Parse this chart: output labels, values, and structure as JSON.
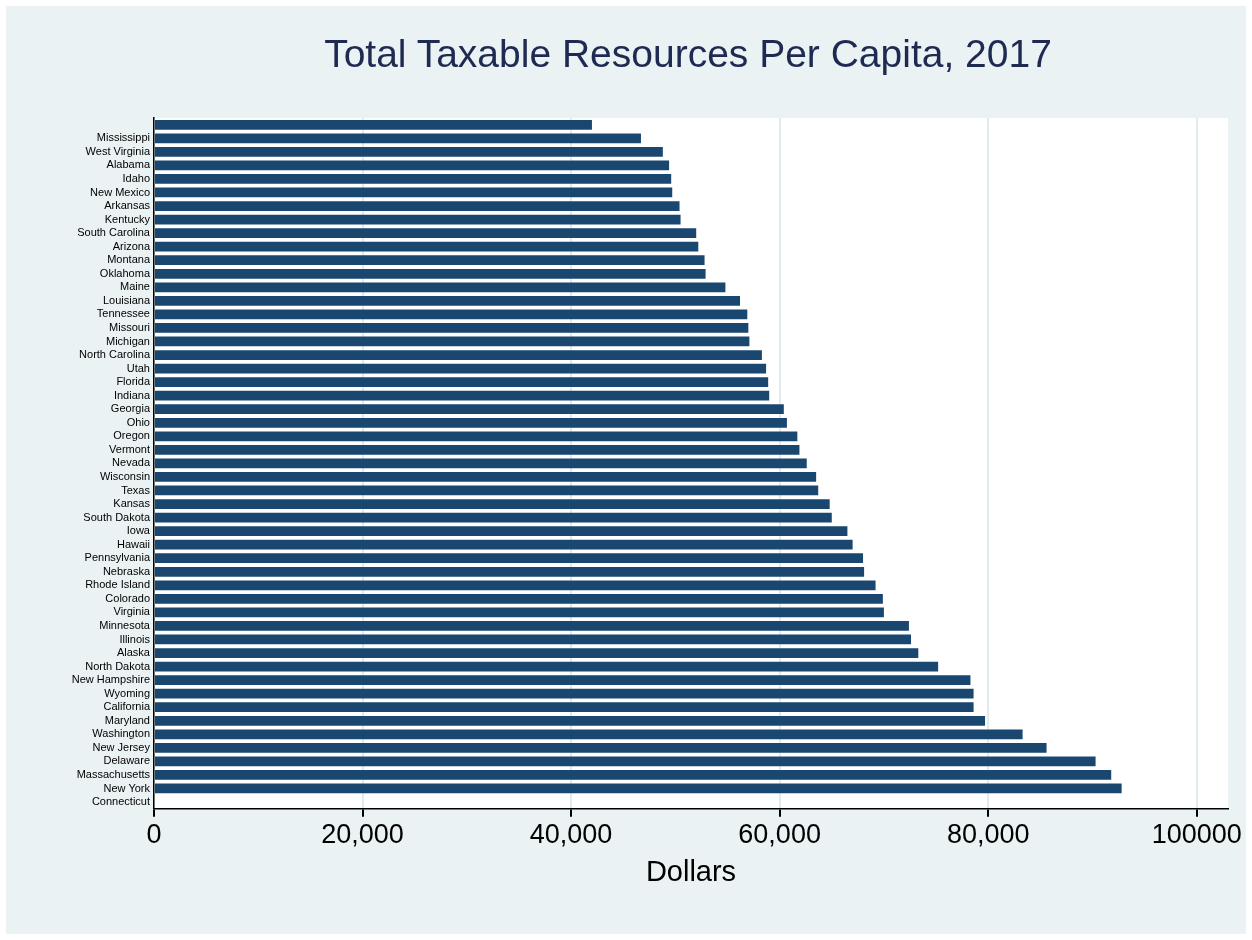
{
  "chart_data": {
    "type": "bar",
    "orientation": "horizontal",
    "title": "Total Taxable Resources Per Capita, 2017",
    "xlabel": "Dollars",
    "categories": [
      null,
      "Mississippi",
      "West Virginia",
      "Alabama",
      "Idaho",
      "New Mexico",
      "Arkansas",
      "Kentucky",
      "South Carolina",
      "Arizona",
      "Montana",
      "Oklahoma",
      "Maine",
      "Louisiana",
      "Tennessee",
      "Missouri",
      "Michigan",
      "North Carolina",
      "Utah",
      "Florida",
      "Indiana",
      "Georgia",
      "Ohio",
      "Oregon",
      "Vermont",
      "Nevada",
      "Wisconsin",
      "Texas",
      "Kansas",
      "South Dakota",
      "Iowa",
      "Hawaii",
      "Pennsylvania",
      "Nebraska",
      "Rhode Island",
      "Colorado",
      "Virginia",
      "Minnesota",
      "Illinois",
      "Alaska",
      "North Dakota",
      "New Hampshire",
      "Wyoming",
      "California",
      "Maryland",
      "Washington",
      "New Jersey",
      "Delaware",
      "Massachusetts",
      "New York",
      "Connecticut"
    ],
    "values": [
      42000,
      46700,
      48800,
      49400,
      49600,
      49700,
      50400,
      50500,
      52000,
      52200,
      52800,
      52900,
      54800,
      56200,
      56900,
      57000,
      57100,
      58300,
      58700,
      58900,
      59000,
      60400,
      60700,
      61700,
      61900,
      62600,
      63500,
      63700,
      64800,
      65000,
      66500,
      67000,
      68000,
      68100,
      69200,
      69900,
      70000,
      72400,
      72600,
      73300,
      75200,
      78300,
      78600,
      78600,
      79700,
      83300,
      85600,
      90300,
      91800,
      92800,
      null
    ],
    "color": "#1a476f",
    "xlim": [
      0,
      103000
    ],
    "xticks": [
      0,
      {
        "value": 20000,
        "label": "20,000"
      },
      {
        "value": 40000,
        "label": "40,000"
      },
      {
        "value": 60000,
        "label": "60,000"
      },
      {
        "value": 80000,
        "label": "80,000"
      },
      100000
    ],
    "grid": "x"
  }
}
